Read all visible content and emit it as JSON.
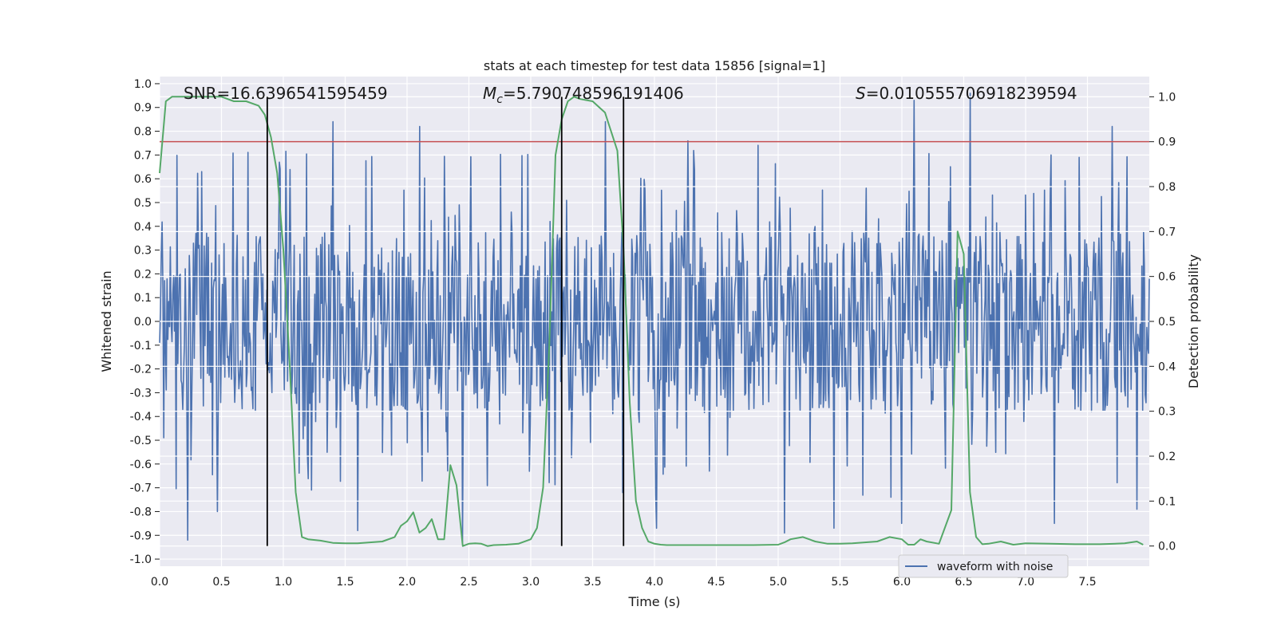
{
  "chart_data": {
    "type": "line",
    "title": "stats at each timestep for test data 15856 [signal=1]",
    "xlabel": "Time (s)",
    "ylabel": "Whitened strain",
    "y2label": "Detection probability",
    "xlim": [
      0.0,
      8.0
    ],
    "ylim": [
      -1.03,
      1.03
    ],
    "y2lim": [
      -0.045,
      1.045
    ],
    "xticks": [
      "0.0",
      "0.5",
      "1.0",
      "1.5",
      "2.0",
      "2.5",
      "3.0",
      "3.5",
      "4.0",
      "4.5",
      "5.0",
      "5.5",
      "6.0",
      "6.5",
      "7.0",
      "7.5"
    ],
    "yticks": [
      "1.0",
      "0.9",
      "0.8",
      "0.7",
      "0.6",
      "0.5",
      "0.4",
      "0.3",
      "0.2",
      "0.1",
      "0.0",
      "-0.1",
      "-0.2",
      "-0.3",
      "-0.4",
      "-0.5",
      "-0.6",
      "-0.7",
      "-0.8",
      "-0.9",
      "-1.0"
    ],
    "y2ticks": [
      "1.0",
      "0.9",
      "0.8",
      "0.7",
      "0.6",
      "0.5",
      "0.4",
      "0.3",
      "0.2",
      "0.1",
      "0.0"
    ],
    "annotations": {
      "snr": "SNR=16.6396541595459",
      "mc_symbol": "M",
      "mc_sub": "c",
      "mc_value": "=5.790748596191406",
      "s_symbol": "S",
      "s_value": "=0.010555706918239594"
    },
    "legend": {
      "entries": [
        "waveform with noise"
      ],
      "placement": "lower-right"
    },
    "threshold": {
      "value": 0.9,
      "axis": "y2",
      "color": "#c44e52"
    },
    "vertical_lines": [
      0.87,
      3.25,
      3.75
    ],
    "waveform": {
      "name": "waveform with noise",
      "color": "#4c72b0",
      "typical_amplitude": 0.38,
      "peaks": [
        {
          "t": 0.47,
          "v": 0.98
        },
        {
          "t": 1.4,
          "v": 0.84
        },
        {
          "t": 2.1,
          "v": 0.82
        },
        {
          "t": 3.6,
          "v": 0.84
        },
        {
          "t": 4.27,
          "v": 0.76
        },
        {
          "t": 5.45,
          "v": 0.82
        },
        {
          "t": 6.1,
          "v": 0.93
        },
        {
          "t": 6.55,
          "v": 0.96
        },
        {
          "t": 7.7,
          "v": 0.82
        },
        {
          "t": 0.23,
          "v": -0.92
        },
        {
          "t": 0.47,
          "v": -0.8
        },
        {
          "t": 1.6,
          "v": -0.88
        },
        {
          "t": 2.45,
          "v": -0.93
        },
        {
          "t": 3.74,
          "v": -0.72
        },
        {
          "t": 4.02,
          "v": -0.87
        },
        {
          "t": 5.05,
          "v": -0.89
        },
        {
          "t": 5.45,
          "v": -0.87
        },
        {
          "t": 6.0,
          "v": -0.85
        },
        {
          "t": 7.23,
          "v": -0.85
        },
        {
          "t": 7.9,
          "v": -0.79
        }
      ]
    },
    "series": [
      {
        "name": "Detection probability",
        "axis": "y2",
        "color": "#55a868",
        "x": [
          0.0,
          0.05,
          0.1,
          0.2,
          0.3,
          0.4,
          0.5,
          0.6,
          0.7,
          0.8,
          0.85,
          0.9,
          0.95,
          1.0,
          1.05,
          1.1,
          1.15,
          1.2,
          1.3,
          1.4,
          1.5,
          1.6,
          1.7,
          1.8,
          1.9,
          1.95,
          2.0,
          2.05,
          2.1,
          2.15,
          2.2,
          2.25,
          2.3,
          2.35,
          2.4,
          2.45,
          2.5,
          2.55,
          2.6,
          2.65,
          2.7,
          2.8,
          2.9,
          3.0,
          3.05,
          3.1,
          3.15,
          3.2,
          3.25,
          3.3,
          3.35,
          3.4,
          3.5,
          3.6,
          3.7,
          3.75,
          3.8,
          3.85,
          3.9,
          3.95,
          4.0,
          4.05,
          4.1,
          4.2,
          4.4,
          4.6,
          4.8,
          5.0,
          5.05,
          5.1,
          5.2,
          5.3,
          5.4,
          5.5,
          5.6,
          5.7,
          5.8,
          5.9,
          6.0,
          6.05,
          6.1,
          6.15,
          6.2,
          6.3,
          6.4,
          6.45,
          6.5,
          6.55,
          6.6,
          6.65,
          6.7,
          6.8,
          6.9,
          7.0,
          7.2,
          7.4,
          7.6,
          7.8,
          7.9,
          7.95
        ],
        "values": [
          0.83,
          0.99,
          1.0,
          1.0,
          1.0,
          1.0,
          1.0,
          0.99,
          0.99,
          0.98,
          0.96,
          0.91,
          0.83,
          0.66,
          0.41,
          0.12,
          0.02,
          0.015,
          0.012,
          0.007,
          0.006,
          0.006,
          0.008,
          0.01,
          0.02,
          0.045,
          0.055,
          0.075,
          0.03,
          0.04,
          0.06,
          0.015,
          0.015,
          0.18,
          0.135,
          0.0,
          0.005,
          0.006,
          0.005,
          0.0,
          0.002,
          0.003,
          0.005,
          0.015,
          0.04,
          0.13,
          0.45,
          0.87,
          0.95,
          0.99,
          1.0,
          0.995,
          0.99,
          0.965,
          0.88,
          0.66,
          0.32,
          0.1,
          0.04,
          0.01,
          0.005,
          0.003,
          0.002,
          0.002,
          0.002,
          0.002,
          0.002,
          0.003,
          0.008,
          0.015,
          0.02,
          0.01,
          0.005,
          0.005,
          0.006,
          0.008,
          0.01,
          0.02,
          0.015,
          0.003,
          0.003,
          0.015,
          0.01,
          0.005,
          0.08,
          0.7,
          0.65,
          0.12,
          0.02,
          0.004,
          0.005,
          0.01,
          0.003,
          0.006,
          0.005,
          0.004,
          0.004,
          0.006,
          0.01,
          0.003
        ]
      }
    ]
  }
}
